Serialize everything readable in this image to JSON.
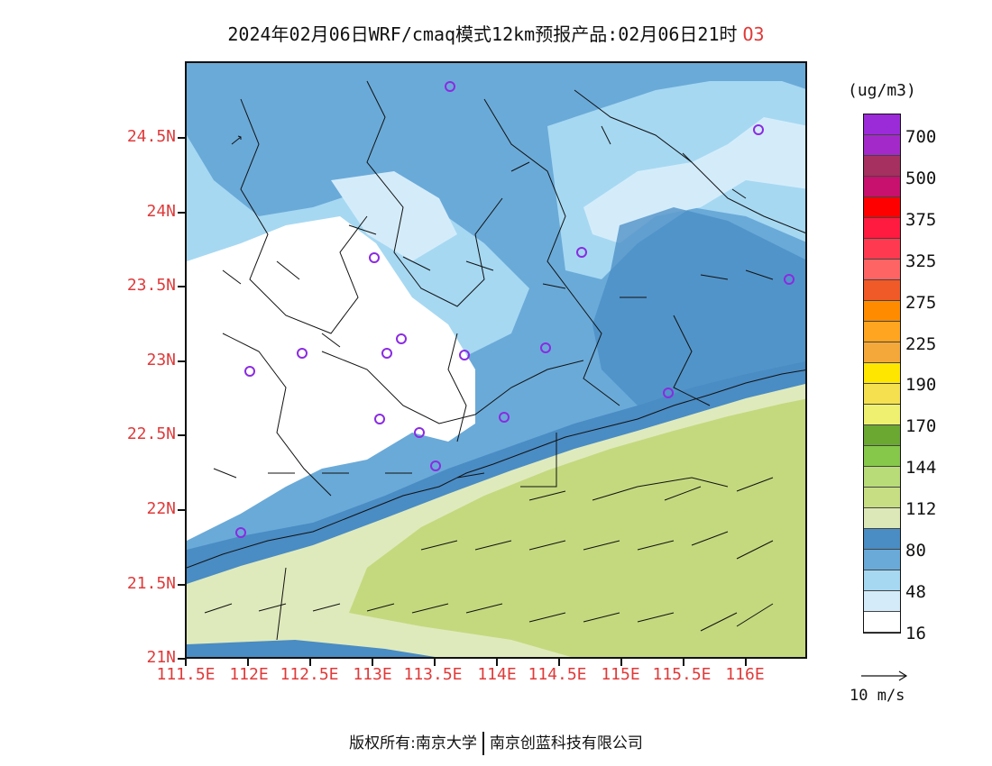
{
  "title": {
    "text": "2024年02月06日WRF/cmaq模式12km预报产品:02月06日21时",
    "species": "O3"
  },
  "axes": {
    "y_labels": [
      "24.5N",
      "24N",
      "23.5N",
      "23N",
      "22.5N",
      "22N",
      "21.5N",
      "21N"
    ],
    "x_labels": [
      "111.5E",
      "112E",
      "112.5E",
      "113E",
      "113.5E",
      "114E",
      "114.5E",
      "115E",
      "115.5E",
      "116E"
    ]
  },
  "colorbar": {
    "unit": "(ug/m3)",
    "colors": [
      "#9b2bd8",
      "#a32ac8",
      "#a63060",
      "#c8106e",
      "#ff0000",
      "#ff1a40",
      "#ff3a50",
      "#ff6464",
      "#f05a28",
      "#ff8c00",
      "#ffa520",
      "#f5a83a",
      "#ffe600",
      "#f5e050",
      "#f0f070",
      "#6aa832",
      "#86c84a",
      "#b8dc78",
      "#c8de82",
      "#dde8b8",
      "#4a8cc4",
      "#6aaad8",
      "#a6d8f2",
      "#d4ecfa",
      "#ffffff"
    ],
    "labels": [
      "700",
      "500",
      "375",
      "325",
      "275",
      "225",
      "190",
      "170",
      "144",
      "112",
      "80",
      "48",
      "16"
    ]
  },
  "wind_vector": {
    "label": "10 m/s"
  },
  "footer": {
    "left": "版权所有:南京大学",
    "right": "南京创蓝科技有限公司"
  },
  "colors": {
    "land_green": "#c4d97e",
    "pale_green": "#dfeabc",
    "dark_blue": "#4a8cc4",
    "mid_blue": "#6aaad8",
    "light_blue": "#a6d8f2",
    "pale_blue": "#d4ecfa",
    "station": "#8a2be2",
    "axis_label": "#e03a3a"
  }
}
